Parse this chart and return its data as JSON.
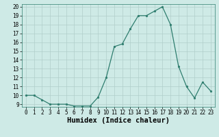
{
  "x": [
    0,
    1,
    2,
    3,
    4,
    5,
    6,
    7,
    8,
    9,
    10,
    11,
    12,
    13,
    14,
    15,
    16,
    17,
    18,
    19,
    20,
    21,
    22,
    23
  ],
  "y": [
    10,
    10,
    9.5,
    9,
    9,
    9,
    8.8,
    8.8,
    8.8,
    9.8,
    12,
    15.5,
    15.8,
    17.5,
    19,
    19,
    19.5,
    20,
    18,
    13.3,
    11,
    9.7,
    11.5,
    10.5
  ],
  "xlabel": "Humidex (Indice chaleur)",
  "ylim_min": 8.7,
  "ylim_max": 20.3,
  "yticks": [
    9,
    10,
    11,
    12,
    13,
    14,
    15,
    16,
    17,
    18,
    19,
    20
  ],
  "xticks": [
    0,
    1,
    2,
    3,
    4,
    5,
    6,
    7,
    8,
    9,
    10,
    11,
    12,
    13,
    14,
    15,
    16,
    17,
    18,
    19,
    20,
    21,
    22,
    23
  ],
  "line_color": "#2e7d6e",
  "marker_color": "#2e7d6e",
  "bg_color": "#ceeae6",
  "grid_color": "#b0ceca",
  "tick_label_fontsize": 5.5,
  "xlabel_fontsize": 7.5
}
